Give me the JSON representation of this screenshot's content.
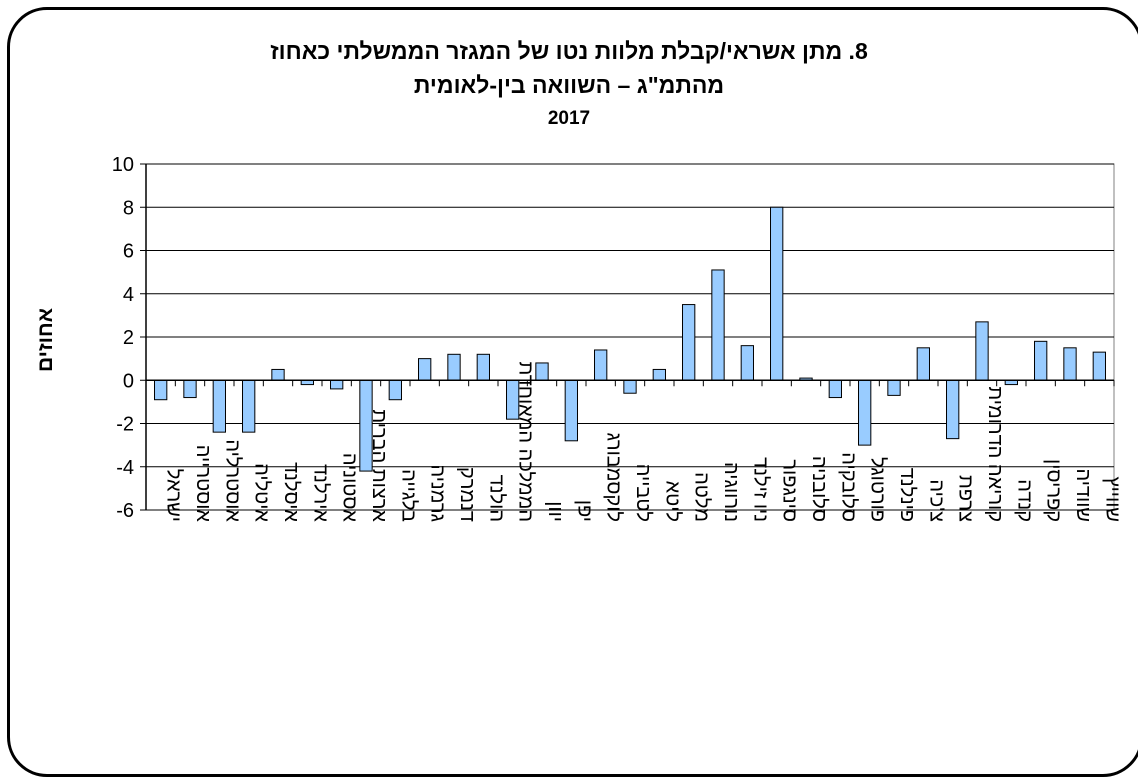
{
  "chart_data": {
    "type": "bar",
    "title_lines": [
      "8. מתן אשראי/קבלת מלוות נטו של המגזר הממשלתי כאחוז",
      "מהתמ\"ג – השוואה בין-לאומית",
      "2017"
    ],
    "xlabel": "",
    "ylabel": "אחוזים",
    "ylim": [
      -6,
      10
    ],
    "yticks": [
      -6,
      -4,
      -2,
      0,
      2,
      4,
      6,
      8,
      10
    ],
    "grid": true,
    "bar_color": "#99ccff",
    "categories": [
      "ישראל",
      "אוסטרייה",
      "אוסטרליה",
      "איטליה",
      "איסלנד",
      "אירלנד",
      "אסטוניה",
      "ארצות הברית",
      "בלגייה",
      "גרמניה",
      "דנמרק",
      "הולנד",
      "הממלכה המאוחדת",
      "יוון",
      "יפן",
      "לוקסמבורג",
      "לטבייה",
      "ליטא",
      "מלטה",
      "נורווגיה",
      "ניו זילנד",
      "סינגפור",
      "סלובניה",
      "סלובקיה",
      "פורטוגל",
      "פינלנד",
      "צ'כיה",
      "צרפת",
      "קוריאה הדרומית",
      "קנדה",
      "קפריסין",
      "שוודיה",
      "שווייץ"
    ],
    "values": [
      -0.9,
      -0.8,
      -2.4,
      -2.4,
      0.5,
      -0.2,
      -0.4,
      -4.2,
      -0.9,
      1.0,
      1.2,
      1.2,
      -1.8,
      0.8,
      -2.8,
      1.4,
      -0.6,
      0.5,
      3.5,
      5.1,
      1.6,
      8.0,
      0.1,
      -0.8,
      -3.0,
      -0.7,
      1.5,
      -2.7,
      2.7,
      -0.2,
      1.8,
      1.5,
      1.3
    ]
  }
}
